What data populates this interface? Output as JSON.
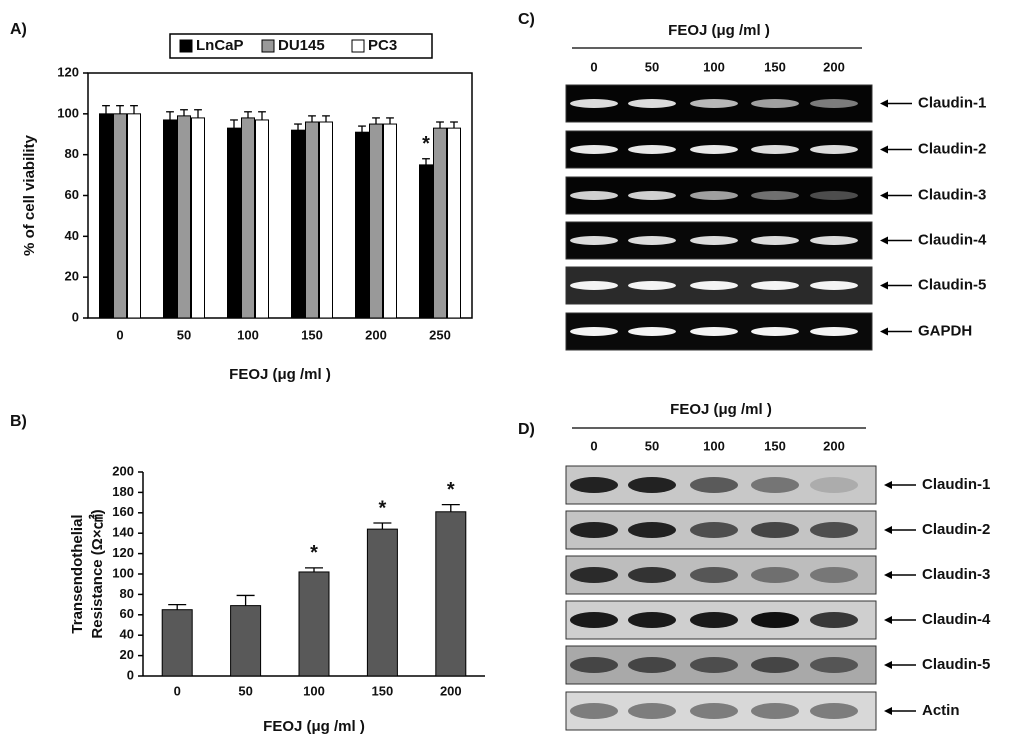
{
  "chart_data": [
    {
      "type": "bar",
      "panel_label": "A)",
      "x_label": "FEOJ (μg /ml )",
      "y_label": [
        "% of cell viability"
      ],
      "categories": [
        "0",
        "50",
        "100",
        "150",
        "200",
        "250"
      ],
      "series": [
        {
          "name": "LnCaP",
          "color": "#000000",
          "values": [
            100,
            97,
            93,
            92,
            91,
            75
          ],
          "errors": [
            4,
            4,
            4,
            3,
            3,
            3
          ]
        },
        {
          "name": "DU145",
          "color": "#999999",
          "values": [
            100,
            99,
            98,
            96,
            95,
            93
          ],
          "errors": [
            4,
            3,
            3,
            3,
            3,
            3
          ]
        },
        {
          "name": "PC3",
          "color": "#ffffff",
          "values": [
            100,
            98,
            97,
            96,
            95,
            93
          ],
          "errors": [
            4,
            4,
            4,
            3,
            3,
            3
          ]
        }
      ],
      "ylim": [
        0,
        120
      ],
      "yticks": [
        0,
        20,
        40,
        60,
        80,
        100,
        120
      ],
      "legend": "top",
      "annotations": [
        {
          "label": "*",
          "category": "250",
          "series": "LnCaP"
        }
      ]
    },
    {
      "type": "bar",
      "panel_label": "B)",
      "x_label": "FEOJ (μg /ml )",
      "y_label": [
        "Transendothelial",
        "Resistance (Ω×㎠)"
      ],
      "categories": [
        "0",
        "50",
        "100",
        "150",
        "200"
      ],
      "series": [
        {
          "color": "#595959",
          "values": [
            65,
            69,
            102,
            144,
            161
          ],
          "errors": [
            5,
            10,
            4,
            6,
            7
          ]
        }
      ],
      "ylim": [
        0,
        200
      ],
      "yticks": [
        0,
        20,
        40,
        60,
        80,
        100,
        120,
        140,
        160,
        180,
        200
      ],
      "annotations": [
        {
          "label": "*",
          "category": "100"
        },
        {
          "label": "*",
          "category": "150"
        },
        {
          "label": "*",
          "category": "200"
        }
      ]
    }
  ],
  "panels": [
    {
      "panel_label": "C)",
      "title": "FEOJ (μg /ml )",
      "lanes": [
        "0",
        "50",
        "100",
        "150",
        "200"
      ],
      "rows": [
        "Claudin-1",
        "Claudin-2",
        "Claudin-3",
        "Claudin-4",
        "Claudin-5",
        "GAPDH"
      ]
    },
    {
      "panel_label": "D)",
      "title": "FEOJ (μg /ml )",
      "lanes": [
        "0",
        "50",
        "100",
        "150",
        "200"
      ],
      "rows": [
        "Claudin-1",
        "Claudin-2",
        "Claudin-3",
        "Claudin-4",
        "Claudin-5",
        "Actin"
      ]
    }
  ]
}
